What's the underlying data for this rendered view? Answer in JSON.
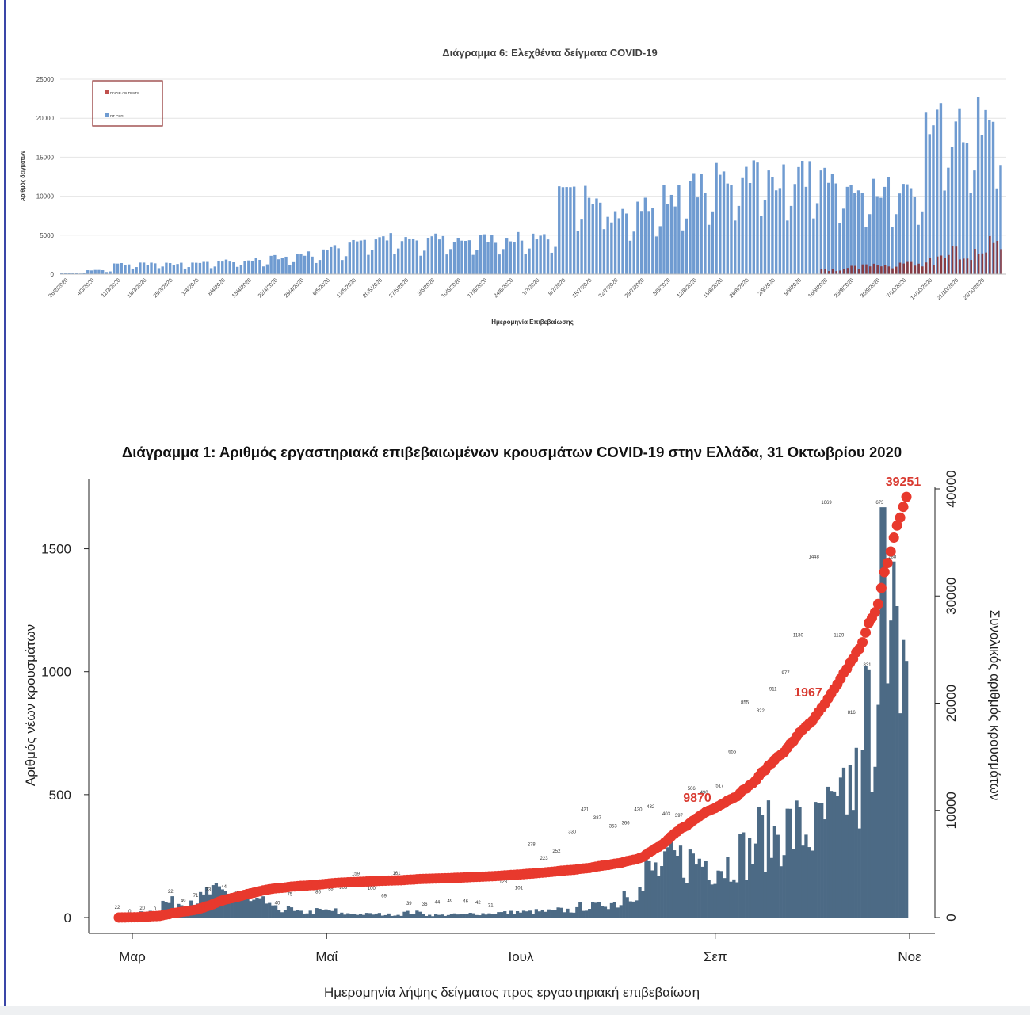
{
  "chart_data": [
    {
      "type": "bar",
      "title": "Διάγραμμα 6: Ελεχθέντα δείγματα COVID-19",
      "xlabel": "Ημερομηνία Επιβεβαίωσης",
      "ylabel": "Αριθμός δειγμάτων",
      "ylim": [
        0,
        25000
      ],
      "yticks": [
        0,
        5000,
        10000,
        15000,
        20000,
        25000
      ],
      "legend_position": "top-left",
      "legend": [
        "RAPID AG TESTS",
        "RT-PCR"
      ],
      "colors": {
        "rapid": "#c0504d",
        "pcr": "#6f9bd1",
        "rapid_dark": "#8c2a2a"
      },
      "categories": [
        "26/2/2020",
        "4/3/2020",
        "11/3/2020",
        "18/3/2020",
        "25/3/2020",
        "1/4/2020",
        "8/4/2020",
        "15/4/2020",
        "22/4/2020",
        "29/4/2020",
        "6/5/2020",
        "13/5/2020",
        "20/5/2020",
        "27/5/2020",
        "3/6/2020",
        "10/6/2020",
        "17/6/2020",
        "24/6/2020",
        "1/7/2020",
        "8/7/2020",
        "15/7/2020",
        "22/7/2020",
        "29/7/2020",
        "5/8/2020",
        "12/8/2020",
        "19/8/2020",
        "26/8/2020",
        "2/9/2020",
        "9/9/2020",
        "16/9/2020",
        "23/9/2020",
        "30/9/2020",
        "7/10/2020",
        "14/10/2020",
        "21/10/2020",
        "28/10/2020"
      ],
      "series": [
        {
          "name": "RT-PCR",
          "weekly_levels": [
            150,
            500,
            1300,
            1400,
            1300,
            1400,
            1700,
            1800,
            2200,
            2600,
            3300,
            4500,
            4700,
            4300,
            4600,
            4500,
            4600,
            4700,
            5000,
            10000,
            10500,
            7800,
            8800,
            10200,
            11500,
            12500,
            13500,
            12500,
            13000,
            12000,
            11000,
            11000,
            11500,
            19500,
            19000,
            20000
          ]
        },
        {
          "name": "RAPID AG TESTS",
          "weekly_levels": [
            0,
            0,
            0,
            0,
            0,
            0,
            0,
            0,
            0,
            0,
            0,
            0,
            0,
            0,
            0,
            0,
            0,
            0,
            0,
            0,
            0,
            0,
            0,
            0,
            0,
            0,
            0,
            0,
            0,
            500,
            900,
            1000,
            1300,
            1800,
            3000,
            3500
          ]
        }
      ]
    },
    {
      "type": "bar",
      "title": "Διάγραμμα 1: Αριθμός εργαστηριακά επιβεβαιωμένων κρουσμάτων COVID-19 στην Ελλάδα, 31 Οκτωβρίου 2020",
      "xlabel": "Ημερομηνία λήψης δείγματος προς εργαστηριακή επιβεβαίωση",
      "ylabel": "Αριθμός νέων κρουσμάτων",
      "y2label": "Συνολικός αριθμός κρουσμάτων",
      "ylim": [
        0,
        1750
      ],
      "y2lim": [
        0,
        40000
      ],
      "yticks": [
        0,
        500,
        1000,
        1500
      ],
      "y2ticks": [
        0,
        10000,
        20000,
        30000,
        40000
      ],
      "xticks": [
        "Μαρ",
        "Μαΐ",
        "Ιουλ",
        "Σεπ",
        "Νοε"
      ],
      "colors": {
        "bars": "#4c6a85",
        "cumulative": "#e8392d",
        "label": "#d93a30"
      },
      "weekly_new_cases": [
        5,
        25,
        60,
        75,
        100,
        80,
        60,
        35,
        22,
        28,
        15,
        14,
        12,
        20,
        10,
        12,
        16,
        20,
        22,
        25,
        30,
        45,
        60,
        110,
        190,
        230,
        230,
        220,
        260,
        330,
        360,
        350,
        400,
        520,
        880,
        1350
      ],
      "cumulative_labels": [
        "9870",
        "1967",
        "39251"
      ],
      "bar_value_labels": [
        "22",
        "0",
        "20",
        "0",
        "22",
        "49",
        "71",
        "33",
        "44",
        "67",
        "70",
        "60",
        "40",
        "75",
        "112",
        "86",
        "98",
        "103",
        "159",
        "100",
        "69",
        "161",
        "39",
        "36",
        "44",
        "49",
        "46",
        "42",
        "31",
        "128",
        "101",
        "278",
        "223",
        "252",
        "330",
        "421",
        "387",
        "353",
        "366",
        "420",
        "432",
        "403",
        "397",
        "506",
        "490",
        "517",
        "656",
        "855",
        "822",
        "911",
        "977",
        "1130",
        "1448",
        "1669",
        "1129",
        "816",
        "831",
        "673",
        "288"
      ]
    }
  ]
}
